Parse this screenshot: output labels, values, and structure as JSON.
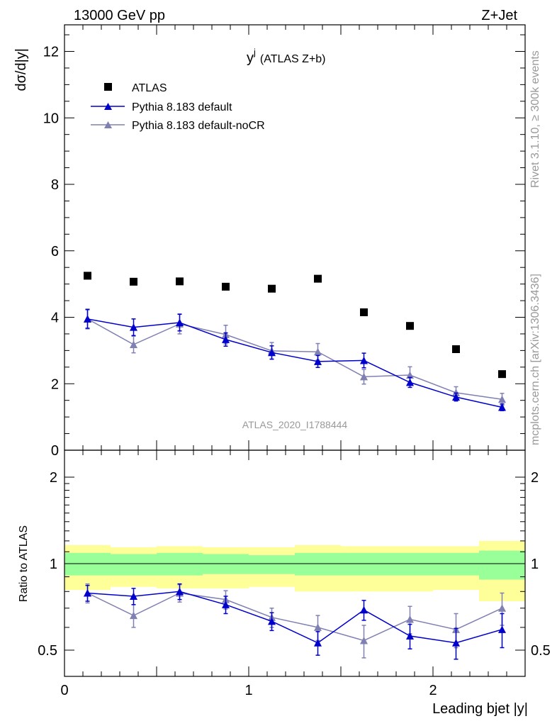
{
  "header": {
    "left": "13000 GeV pp",
    "right": "Z+Jet"
  },
  "side_labels": {
    "rivet": "Rivet 3.1.10, ≥ 300k events",
    "mcplots": "mcplots.cern.ch [arXiv:1306.3436]"
  },
  "watermark": "ATLAS_2020_I1788444",
  "colors": {
    "atlas": "#000000",
    "default": "#0000cc",
    "nocr": "#8080b3",
    "band_inner": "#99ff99",
    "band_outer": "#ffff99"
  },
  "chart_data": [
    {
      "type": "scatter",
      "panel": "main",
      "title": "y^j (ATLAS Z+b)",
      "title_main": "y",
      "title_sup": "j",
      "title_rest": "(ATLAS Z+b)",
      "xlabel": "",
      "ylabel": "dσ/d|y|",
      "xlim": [
        0,
        2.5
      ],
      "ylim": [
        0,
        12.8
      ],
      "yticks": [
        0,
        2,
        4,
        6,
        8,
        10,
        12
      ],
      "ytick_labels": [
        "0",
        "2",
        "4",
        "6",
        "8",
        "10",
        "12"
      ],
      "legend_position": "top-left",
      "x": [
        0.125,
        0.375,
        0.625,
        0.875,
        1.125,
        1.375,
        1.625,
        1.875,
        2.125,
        2.375
      ],
      "series": [
        {
          "name": "ATLAS",
          "style": "square",
          "values": [
            5.25,
            5.07,
            5.08,
            4.92,
            4.86,
            5.16,
            4.15,
            3.74,
            3.04,
            2.29
          ],
          "errors": [
            0.05,
            0.05,
            0.05,
            0.05,
            0.05,
            0.05,
            0.05,
            0.05,
            0.05,
            0.05
          ]
        },
        {
          "name": "Pythia 8.183 default",
          "style": "triangle-line",
          "values": [
            3.95,
            3.7,
            3.84,
            3.33,
            2.94,
            2.67,
            2.7,
            2.04,
            1.6,
            1.29
          ],
          "errors": [
            0.28,
            0.25,
            0.25,
            0.2,
            0.2,
            0.18,
            0.22,
            0.15,
            0.12,
            0.1
          ]
        },
        {
          "name": "Pythia 8.183 default-noCR",
          "style": "triangle-line",
          "values": [
            3.95,
            3.18,
            3.8,
            3.48,
            2.99,
            2.96,
            2.21,
            2.26,
            1.73,
            1.53
          ],
          "errors": [
            0.3,
            0.25,
            0.3,
            0.28,
            0.25,
            0.25,
            0.22,
            0.25,
            0.18,
            0.18
          ]
        }
      ]
    },
    {
      "type": "scatter",
      "panel": "ratio",
      "title": "",
      "xlabel": "Leading bjet |y|",
      "ylabel": "Ratio to ATLAS",
      "xlim": [
        0,
        2.5
      ],
      "ylim": [
        0.4,
        2.3
      ],
      "xticks": [
        0,
        1,
        2
      ],
      "xtick_labels": [
        "0",
        "1",
        "2"
      ],
      "yticks": [
        0.5,
        1,
        2
      ],
      "ytick_labels": [
        "0.5",
        "1",
        "2"
      ],
      "bin_edges": [
        0,
        0.25,
        0.5,
        0.75,
        1.0,
        1.25,
        1.5,
        1.75,
        2.0,
        2.25,
        2.5
      ],
      "band_inner": [
        [
          0.91,
          1.09
        ],
        [
          0.91,
          1.08
        ],
        [
          0.91,
          1.09
        ],
        [
          0.92,
          1.08
        ],
        [
          0.92,
          1.07
        ],
        [
          0.91,
          1.09
        ],
        [
          0.91,
          1.09
        ],
        [
          0.91,
          1.09
        ],
        [
          0.91,
          1.09
        ],
        [
          0.88,
          1.11
        ]
      ],
      "band_outer": [
        [
          0.81,
          1.16
        ],
        [
          0.83,
          1.14
        ],
        [
          0.82,
          1.15
        ],
        [
          0.82,
          1.14
        ],
        [
          0.83,
          1.14
        ],
        [
          0.8,
          1.16
        ],
        [
          0.8,
          1.15
        ],
        [
          0.8,
          1.15
        ],
        [
          0.81,
          1.15
        ],
        [
          0.74,
          1.2
        ]
      ],
      "x": [
        0.125,
        0.375,
        0.625,
        0.875,
        1.125,
        1.375,
        1.625,
        1.875,
        2.125,
        2.375
      ],
      "series": [
        {
          "name": "Pythia 8.183 default",
          "values": [
            0.79,
            0.77,
            0.8,
            0.72,
            0.63,
            0.53,
            0.69,
            0.56,
            0.53,
            0.59
          ],
          "errors": [
            0.05,
            0.05,
            0.05,
            0.05,
            0.045,
            0.05,
            0.055,
            0.055,
            0.065,
            0.08
          ]
        },
        {
          "name": "Pythia 8.183 default-noCR",
          "values": [
            0.79,
            0.66,
            0.79,
            0.75,
            0.65,
            0.6,
            0.54,
            0.64,
            0.59,
            0.7
          ],
          "errors": [
            0.06,
            0.06,
            0.055,
            0.055,
            0.05,
            0.06,
            0.07,
            0.07,
            0.08,
            0.09
          ]
        }
      ]
    }
  ]
}
